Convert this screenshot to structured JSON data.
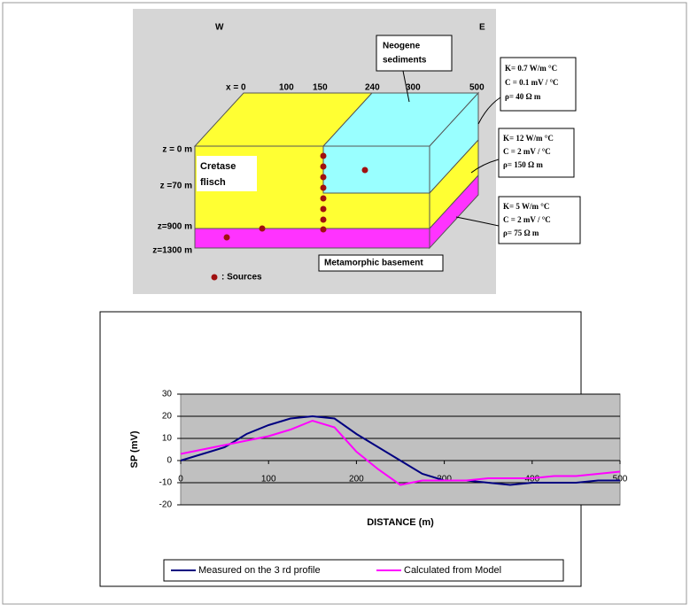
{
  "diagram": {
    "directions": [
      "W",
      "E"
    ],
    "x_labels": [
      "x = 0",
      "100",
      "150",
      "240",
      "300",
      "500"
    ],
    "z_labels": [
      "z = 0 m",
      "z =70 m",
      "z=900 m",
      "z=1300 m"
    ],
    "neogene": [
      "Neogene",
      "sediments"
    ],
    "cretase": [
      "Cretase",
      "flisch"
    ],
    "basement": "Metamorphic basement",
    "sources": ": Sources",
    "props": [
      [
        "K= 0.7 W/m °C",
        "C = 0.1 mV / °C",
        "ρ= 40 Ω m"
      ],
      [
        "K= 12 W/m °C",
        "C = 2 mV / °C",
        "ρ= 150 Ω m"
      ],
      [
        "K= 5 W/m °C",
        "C = 2 mV / °C",
        "ρ= 75 Ω m"
      ]
    ]
  },
  "chart_data": {
    "type": "line",
    "xlabel": "DISTANCE (m)",
    "ylabel": "SP (mV)",
    "x": [
      0,
      25,
      50,
      75,
      100,
      125,
      150,
      175,
      200,
      225,
      250,
      275,
      300,
      325,
      350,
      375,
      400,
      425,
      450,
      475,
      500
    ],
    "series": [
      {
        "name": "Measured on the 3 rd profile",
        "color": "#000080",
        "values": [
          0,
          3,
          6,
          12,
          16,
          19,
          20,
          19,
          12,
          6,
          0,
          -6,
          -9,
          -9,
          -10,
          -11,
          -10,
          -10,
          -10,
          -9,
          -9
        ]
      },
      {
        "name": "Calculated from Model",
        "color": "#ff00ff",
        "values": [
          3,
          5,
          7,
          9,
          11,
          14,
          18,
          15,
          4,
          -4,
          -11,
          -9,
          -9,
          -9,
          -8,
          -8,
          -8,
          -7,
          -7,
          -6,
          -5
        ]
      }
    ],
    "xlim": [
      0,
      500
    ],
    "xticks": [
      0,
      100,
      200,
      300,
      400,
      500
    ],
    "ylim": [
      -20,
      30
    ],
    "yticks": [
      30,
      20,
      10,
      0,
      -10,
      -20
    ],
    "grid": true,
    "legend": "bottom"
  }
}
